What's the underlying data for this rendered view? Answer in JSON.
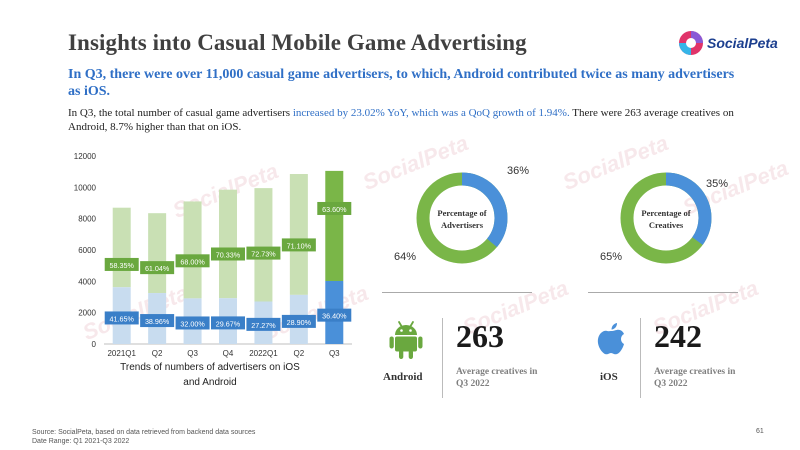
{
  "page": {
    "title": "Insights into Casual Mobile Game Advertising",
    "headline": "In Q3, there were over 11,000 casual game advertisers, to which, Android contributed twice as many advertisers as iOS.",
    "subtext_1": "In Q3, the total number of casual game advertisers ",
    "subtext_hl": "increased by 23.02% YoY, which was a QoQ growth of 1.94%.",
    "subtext_2": " There were 263 average creatives on Android, 8.7% higher than that on iOS.",
    "logo_text": "SocialPeta",
    "watermark": "SocialPeta",
    "source": "Source: SocialPeta, based on data retrieved from backend data sources",
    "date_range": "Date Range: Q1 2021-Q3 2022",
    "page_number": "61"
  },
  "colors": {
    "title": "#404040",
    "accent_blue": "#2f6fc6",
    "android_green": "#7ab648",
    "android_green_light": "#c9e0b4",
    "ios_blue": "#4a90d9",
    "ios_blue_light": "#c8dcef",
    "label_green": "#6aa83f",
    "label_blue": "#3a7fc8"
  },
  "chart_data": [
    {
      "type": "bar",
      "stacked": true,
      "title": "Trends of numbers of advertisers on iOS and Android",
      "categories": [
        "2021Q1",
        "Q2",
        "Q3",
        "Q4",
        "2022Q1",
        "Q2",
        "Q3"
      ],
      "ylim": [
        0,
        12000
      ],
      "yticks": [
        0,
        2000,
        4000,
        6000,
        8000,
        10000,
        12000
      ],
      "totals": [
        8700,
        8350,
        9100,
        9850,
        9950,
        10850,
        11050
      ],
      "series": [
        {
          "name": "iOS",
          "share_labels": [
            "41.65%",
            "38.96%",
            "32.00%",
            "29.67%",
            "27.27%",
            "28.90%",
            "36.40%"
          ]
        },
        {
          "name": "Android",
          "share_labels": [
            "58.35%",
            "61.04%",
            "68.00%",
            "70.33%",
            "72.73%",
            "71.10%",
            "63.60%"
          ]
        }
      ]
    },
    {
      "type": "pie",
      "title": "Percentage of Advertisers",
      "labels": [
        "iOS",
        "Android"
      ],
      "values": [
        36,
        64
      ],
      "value_labels": [
        "36%",
        "64%"
      ]
    },
    {
      "type": "pie",
      "title": "Percentage of Creatives",
      "labels": [
        "iOS",
        "Android"
      ],
      "values": [
        35,
        65
      ],
      "value_labels": [
        "35%",
        "65%"
      ]
    }
  ],
  "stats": {
    "android": {
      "name": "Android",
      "value": "263",
      "caption": "Average creatives in Q3 2022",
      "icon": "android-icon"
    },
    "ios": {
      "name": "iOS",
      "value": "242",
      "caption": "Average creatives in Q3 2022",
      "icon": "apple-icon"
    }
  }
}
